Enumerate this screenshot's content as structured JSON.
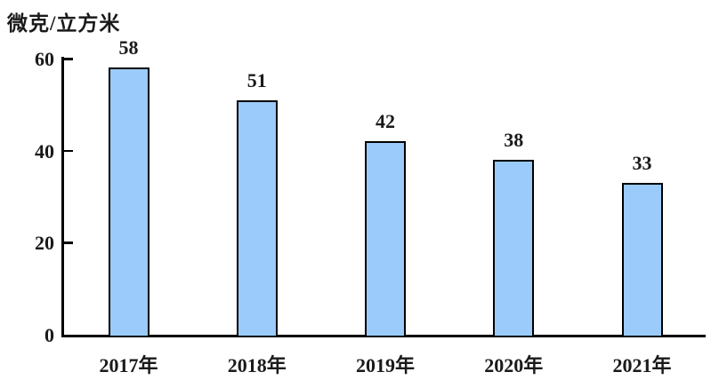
{
  "chart_data": {
    "type": "bar",
    "title": "",
    "ylabel": "微克/立方米",
    "xlabel": "",
    "categories": [
      "2017年",
      "2018年",
      "2019年",
      "2020年",
      "2021年"
    ],
    "values": [
      58,
      51,
      42,
      38,
      33
    ],
    "yticks": [
      0,
      20,
      40,
      60
    ],
    "ylim": [
      0,
      60
    ],
    "grid": false,
    "legend_position": "none",
    "colors": {
      "bar_fill": "#9acbfb",
      "bar_border": "#000000",
      "axis": "#000000",
      "text": "#1a1a1a"
    }
  }
}
